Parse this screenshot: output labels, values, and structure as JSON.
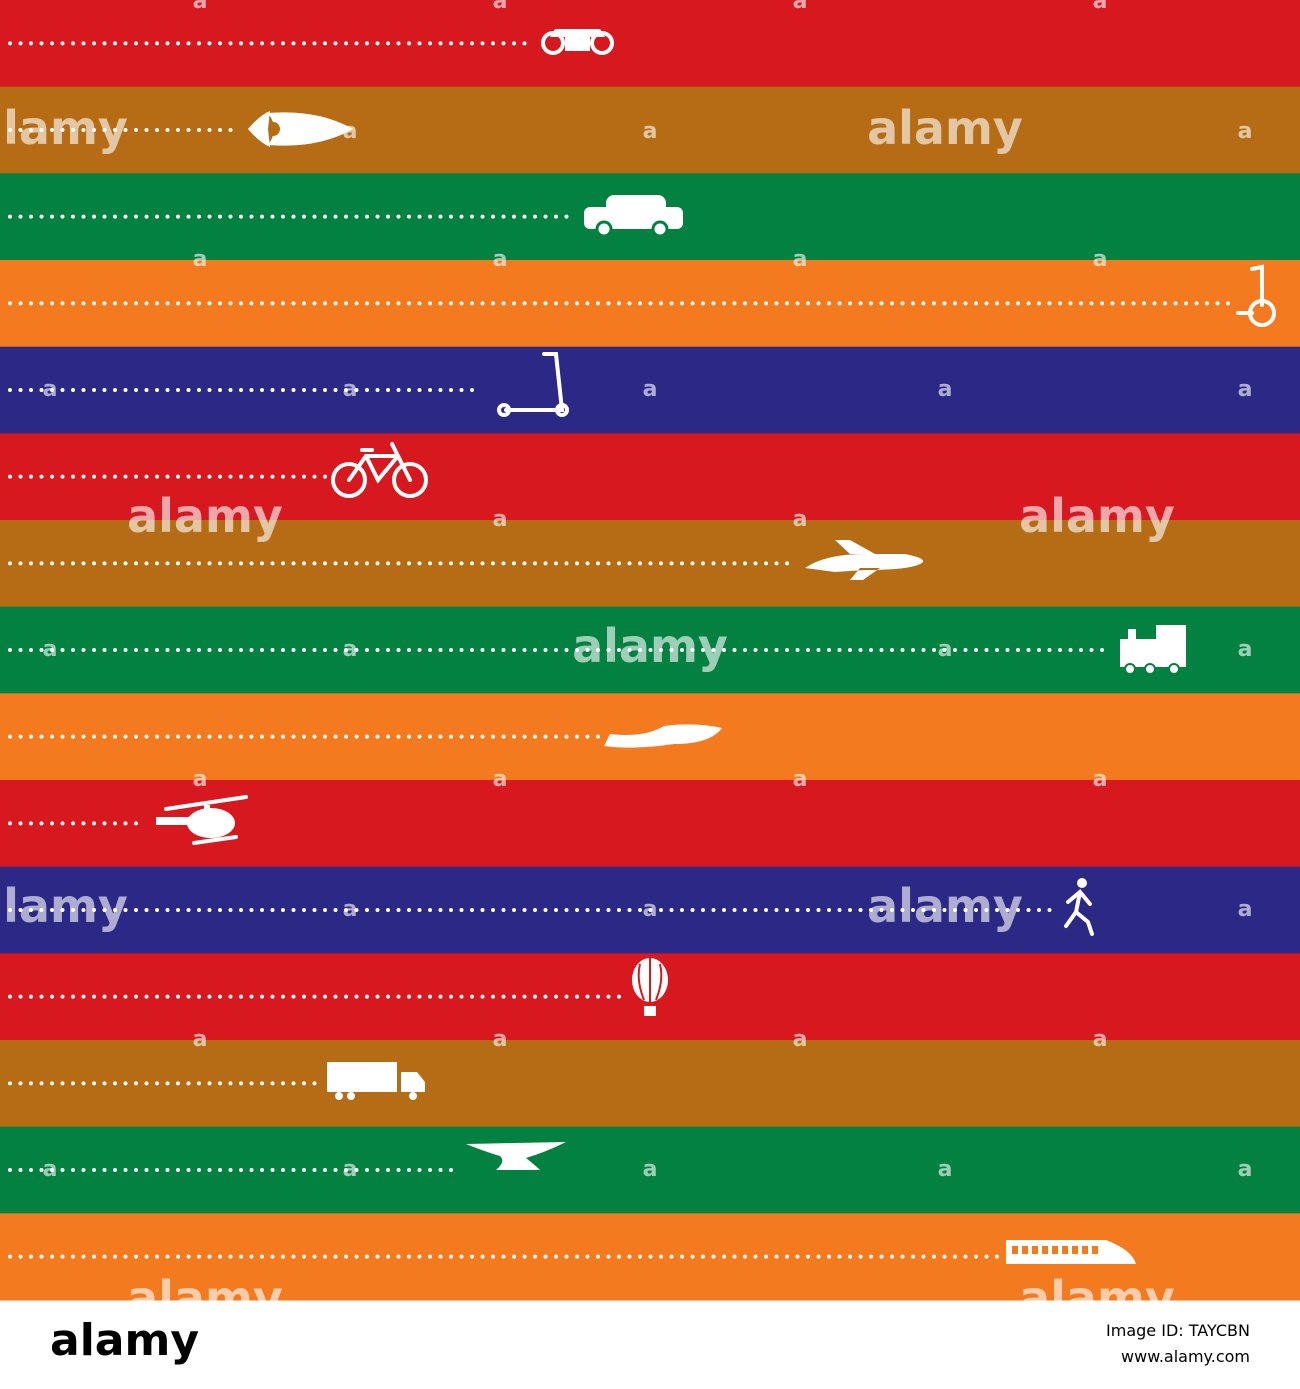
{
  "watermark": {
    "text": "alamy",
    "letter": "a"
  },
  "footer": {
    "brand": "alamy",
    "image_id": "Image ID: TAYCBN",
    "url": "www.alamy.com"
  }
}
